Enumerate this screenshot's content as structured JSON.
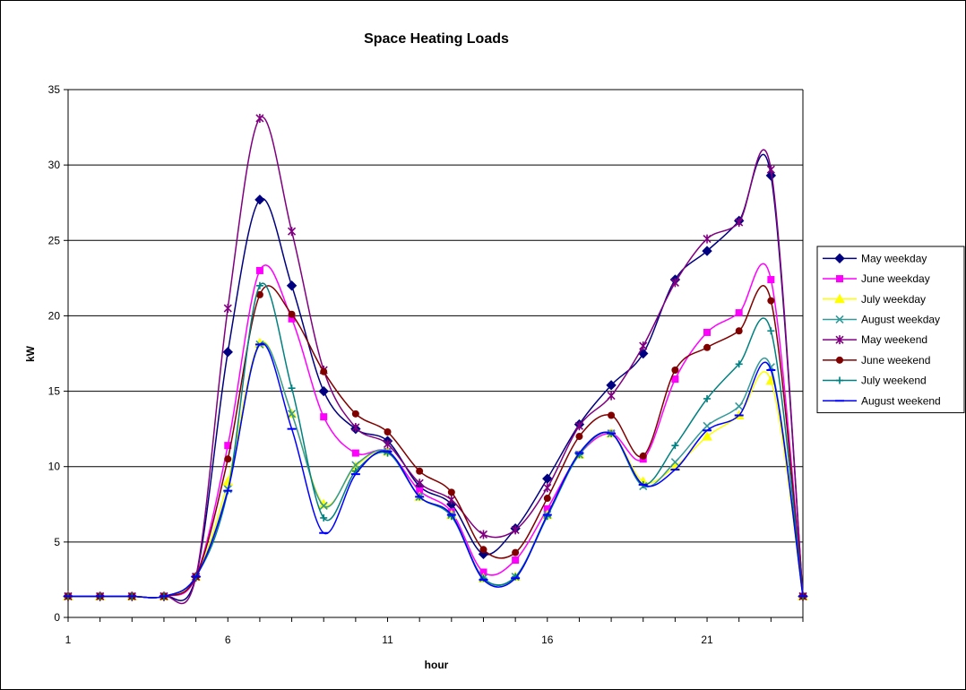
{
  "chart_data": {
    "type": "line",
    "title": "Space Heating Loads",
    "xlabel": "hour",
    "ylabel": "kW",
    "xlim": [
      1,
      24
    ],
    "ylim": [
      0,
      35
    ],
    "xticks": [
      1,
      6,
      11,
      16,
      21
    ],
    "yticks": [
      0,
      5,
      10,
      15,
      20,
      25,
      30,
      35
    ],
    "grid": "horizontal",
    "legend_position": "right",
    "x": [
      1,
      2,
      3,
      4,
      5,
      6,
      7,
      8,
      9,
      10,
      11,
      12,
      13,
      14,
      15,
      16,
      17,
      18,
      19,
      20,
      21,
      22,
      23,
      24
    ],
    "series": [
      {
        "name": "May weekday",
        "color": "#000080",
        "marker": "diamond",
        "values": [
          1.4,
          1.4,
          1.4,
          1.4,
          2.7,
          17.6,
          27.7,
          22.0,
          15.0,
          12.5,
          11.7,
          8.7,
          7.5,
          4.2,
          5.9,
          9.2,
          12.8,
          15.4,
          17.5,
          22.4,
          24.3,
          26.3,
          29.3,
          1.4
        ]
      },
      {
        "name": "June weekday",
        "color": "#ff00ff",
        "marker": "square",
        "values": [
          1.4,
          1.4,
          1.4,
          1.4,
          2.7,
          11.4,
          23.0,
          19.8,
          13.3,
          10.9,
          11.0,
          8.4,
          7.0,
          3.0,
          3.8,
          7.2,
          10.8,
          12.2,
          10.5,
          15.8,
          18.9,
          20.2,
          22.4,
          1.4
        ]
      },
      {
        "name": "July weekday",
        "color": "#ffff00",
        "marker": "triangle",
        "values": [
          1.4,
          1.4,
          1.4,
          1.4,
          2.7,
          9.0,
          18.2,
          13.5,
          7.5,
          10.0,
          11.0,
          8.0,
          6.8,
          2.6,
          2.7,
          6.8,
          10.8,
          12.2,
          9.0,
          10.0,
          12.0,
          13.4,
          15.7,
          1.4
        ]
      },
      {
        "name": "August weekday",
        "color": "#339999",
        "marker": "x",
        "values": [
          1.4,
          1.4,
          1.4,
          1.4,
          2.7,
          8.5,
          18.1,
          13.5,
          7.4,
          10.1,
          11.0,
          8.0,
          6.8,
          2.6,
          2.7,
          6.8,
          10.8,
          12.2,
          8.7,
          10.3,
          12.7,
          14.0,
          16.6,
          1.4
        ]
      },
      {
        "name": "May weekend",
        "color": "#800080",
        "marker": "star",
        "values": [
          1.4,
          1.4,
          1.4,
          1.4,
          2.7,
          20.5,
          33.1,
          25.6,
          16.4,
          12.6,
          11.5,
          8.9,
          7.8,
          5.5,
          5.8,
          8.6,
          12.7,
          14.7,
          18.0,
          22.2,
          25.1,
          26.2,
          29.7,
          1.4
        ]
      },
      {
        "name": "June weekend",
        "color": "#800000",
        "marker": "circle",
        "values": [
          1.4,
          1.4,
          1.4,
          1.4,
          2.7,
          10.5,
          21.4,
          20.1,
          16.3,
          13.5,
          12.3,
          9.7,
          8.3,
          4.5,
          4.3,
          7.9,
          12.0,
          13.4,
          10.7,
          16.4,
          17.9,
          19.0,
          21.0,
          1.4
        ]
      },
      {
        "name": "July weekend",
        "color": "#008080",
        "marker": "plus",
        "values": [
          1.4,
          1.4,
          1.4,
          1.4,
          2.7,
          8.4,
          22.0,
          15.2,
          6.6,
          9.7,
          10.9,
          8.0,
          6.7,
          2.6,
          2.7,
          6.7,
          10.8,
          12.2,
          8.8,
          11.4,
          14.5,
          16.8,
          19.0,
          1.4
        ]
      },
      {
        "name": "August weekend",
        "color": "#0000ff",
        "marker": "dash",
        "values": [
          1.4,
          1.4,
          1.4,
          1.4,
          2.7,
          8.4,
          18.1,
          12.5,
          5.6,
          9.5,
          11.0,
          8.0,
          6.8,
          2.5,
          2.6,
          6.8,
          10.9,
          12.2,
          8.8,
          9.8,
          12.4,
          13.4,
          16.4,
          1.4
        ]
      }
    ]
  }
}
